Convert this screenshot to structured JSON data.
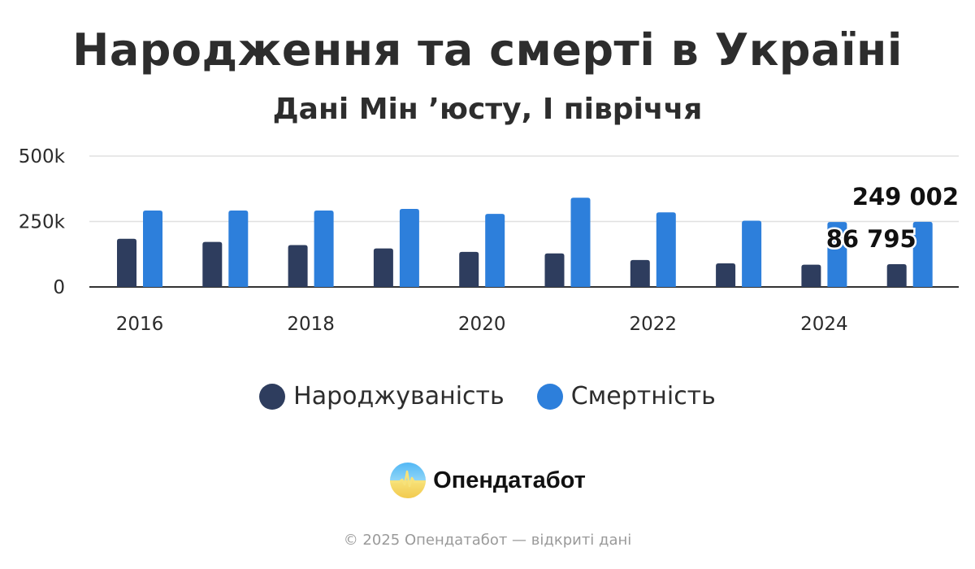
{
  "header": {
    "title": "Народження та смерті в Україні",
    "subtitle": "Дані Мін ʼюсту, І півріччя"
  },
  "chart_data": {
    "type": "bar",
    "categories": [
      "2016",
      "2017",
      "2018",
      "2019",
      "2020",
      "2021",
      "2022",
      "2023",
      "2024",
      "2025"
    ],
    "x_tick_labels": [
      "2016",
      "2018",
      "2020",
      "2022",
      "2024"
    ],
    "y_tick_labels": [
      "0",
      "250k",
      "500k"
    ],
    "y_ticks": [
      0,
      250000,
      500000
    ],
    "ylim": [
      0,
      500000
    ],
    "grid": true,
    "legend_position": "bottom-center",
    "series": [
      {
        "name": "Народжуваність",
        "color": "#2e3d5e",
        "values": [
          184000,
          172000,
          160000,
          147000,
          134000,
          128000,
          103000,
          90000,
          85000,
          86795
        ]
      },
      {
        "name": "Смертність",
        "color": "#2d7fdb",
        "values": [
          292000,
          292000,
          292000,
          298000,
          279000,
          341000,
          285000,
          253000,
          248000,
          249002
        ]
      }
    ],
    "data_labels": [
      {
        "text": "249 002",
        "series": 1,
        "category": "2025"
      },
      {
        "text": "86 795",
        "series": 0,
        "category": "2025"
      }
    ]
  },
  "brand": {
    "name": "Опендатабот"
  },
  "footer": {
    "text": "© 2025 Опендатабот — відкриті дані"
  }
}
